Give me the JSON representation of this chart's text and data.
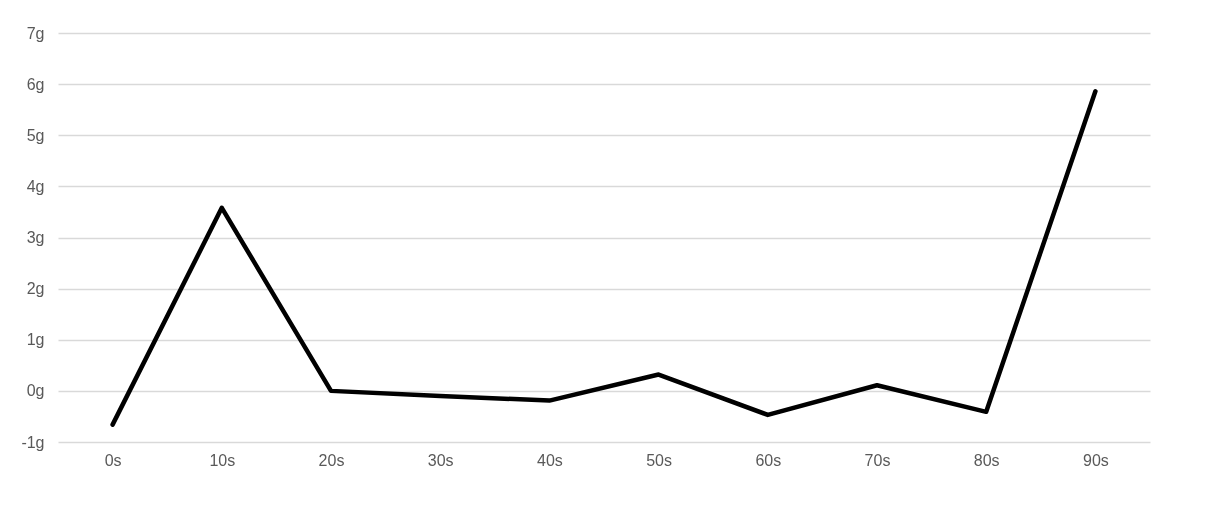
{
  "chart_data": {
    "type": "line",
    "categories": [
      "0s",
      "10s",
      "20s",
      "30s",
      "40s",
      "50s",
      "60s",
      "70s",
      "80s",
      "90s"
    ],
    "series": [
      {
        "color": "#000000",
        "values": [
          -0.66,
          3.58,
          0.0,
          -0.1,
          -0.19,
          0.32,
          -0.47,
          0.11,
          -0.41,
          5.86
        ]
      }
    ],
    "ylim": [
      -1,
      7
    ],
    "yticks": [
      {
        "value": -1,
        "label": "-1g"
      },
      {
        "value": 0,
        "label": "0g"
      },
      {
        "value": 1,
        "label": "1g"
      },
      {
        "value": 2,
        "label": "2g"
      },
      {
        "value": 3,
        "label": "3g"
      },
      {
        "value": 4,
        "label": "4g"
      },
      {
        "value": 5,
        "label": "5g"
      },
      {
        "value": 6,
        "label": "6g"
      },
      {
        "value": 7,
        "label": "7g"
      }
    ],
    "grid": "y",
    "legend": false,
    "marker": "none",
    "line_style": "solid"
  }
}
